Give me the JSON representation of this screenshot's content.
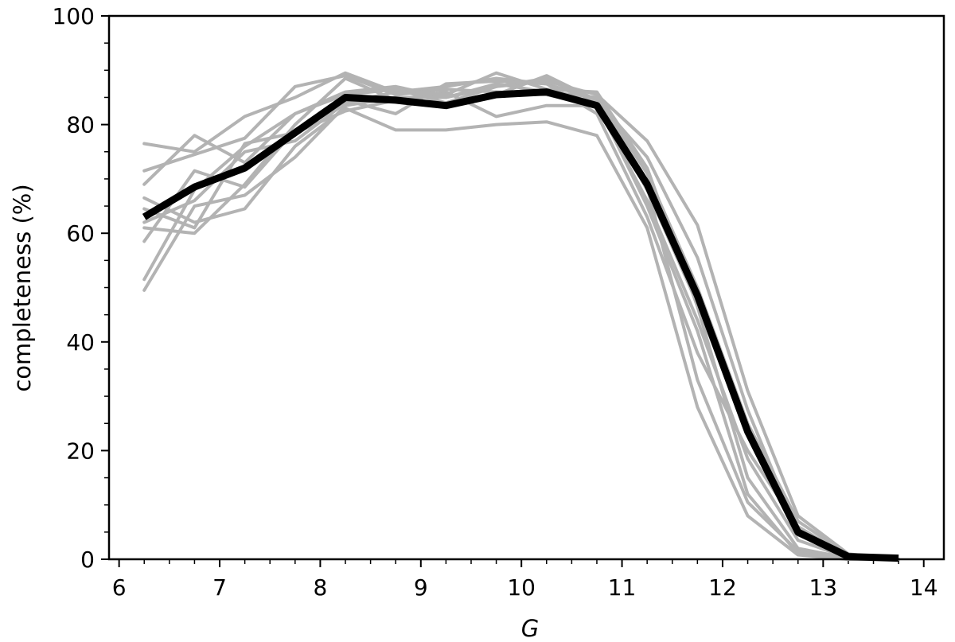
{
  "chart_data": {
    "type": "line",
    "xlabel": "G",
    "ylabel": "completeness (%)",
    "xlim": [
      5.9,
      14.2
    ],
    "ylim": [
      0,
      100
    ],
    "x_ticks": [
      "6",
      "7",
      "8",
      "9",
      "10",
      "11",
      "12",
      "13",
      "14"
    ],
    "y_ticks": [
      "0",
      "20",
      "40",
      "60",
      "80",
      "100"
    ],
    "grid": false,
    "legend": "none",
    "x": [
      6.25,
      6.75,
      7.25,
      7.75,
      8.25,
      8.75,
      9.25,
      9.75,
      10.25,
      10.75,
      11.25,
      11.75,
      12.25,
      12.75,
      13.25,
      13.75
    ],
    "series": [
      {
        "color": "#b3b3b3",
        "values": [
          76.5,
          75.0,
          81.5,
          85.0,
          89.5,
          86.0,
          87.0,
          88.5,
          87.5,
          84.5,
          68.0,
          47.0,
          23.0,
          4.5,
          0.5,
          0.0
        ]
      },
      {
        "color": "#b3b3b3",
        "values": [
          71.5,
          74.5,
          77.5,
          87.0,
          89.0,
          85.5,
          86.5,
          86.0,
          85.5,
          83.5,
          66.0,
          44.0,
          18.5,
          3.5,
          0.3,
          0.0
        ]
      },
      {
        "color": "#b3b3b3",
        "values": [
          69.0,
          78.0,
          73.0,
          82.0,
          86.0,
          87.0,
          85.0,
          87.0,
          88.0,
          85.5,
          77.0,
          61.5,
          31.0,
          8.0,
          1.0,
          0.0
        ]
      },
      {
        "color": "#b3b3b3",
        "values": [
          66.5,
          62.0,
          64.5,
          76.0,
          83.0,
          79.0,
          79.0,
          80.0,
          80.5,
          78.0,
          61.0,
          28.0,
          8.0,
          0.8,
          0.0,
          0.0
        ]
      },
      {
        "color": "#b3b3b3",
        "values": [
          64.5,
          61.0,
          76.5,
          78.5,
          82.5,
          84.5,
          86.0,
          81.5,
          83.5,
          83.5,
          68.5,
          33.0,
          10.5,
          1.5,
          0.1,
          0.0
        ]
      },
      {
        "color": "#b3b3b3",
        "values": [
          62.0,
          66.0,
          75.0,
          77.0,
          84.0,
          86.0,
          85.5,
          89.5,
          86.5,
          86.0,
          72.0,
          46.5,
          15.0,
          2.0,
          0.2,
          0.0
        ]
      },
      {
        "color": "#b3b3b3",
        "values": [
          61.0,
          60.0,
          69.0,
          80.0,
          88.5,
          84.5,
          84.0,
          87.0,
          88.5,
          84.0,
          65.0,
          42.0,
          12.0,
          1.0,
          0.0,
          0.0
        ]
      },
      {
        "color": "#b3b3b3",
        "values": [
          58.5,
          71.5,
          68.5,
          79.0,
          84.5,
          82.0,
          87.5,
          88.0,
          87.5,
          82.0,
          63.0,
          38.0,
          20.0,
          6.0,
          0.5,
          0.0
        ]
      },
      {
        "color": "#b3b3b3",
        "values": [
          51.5,
          68.0,
          76.0,
          82.0,
          85.5,
          86.5,
          84.0,
          85.5,
          89.0,
          84.5,
          74.0,
          55.5,
          27.5,
          5.0,
          0.3,
          0.0
        ]
      },
      {
        "color": "#b3b3b3",
        "values": [
          49.5,
          65.0,
          67.0,
          74.0,
          83.5,
          85.0,
          85.0,
          87.5,
          86.0,
          85.0,
          71.0,
          50.0,
          25.0,
          7.0,
          0.8,
          0.0
        ]
      }
    ],
    "mean": {
      "color": "#000000",
      "values": [
        63.0,
        68.5,
        72.0,
        78.5,
        85.0,
        84.5,
        83.5,
        85.5,
        86.0,
        83.5,
        69.0,
        48.5,
        23.5,
        5.0,
        0.5,
        0.2
      ]
    }
  }
}
